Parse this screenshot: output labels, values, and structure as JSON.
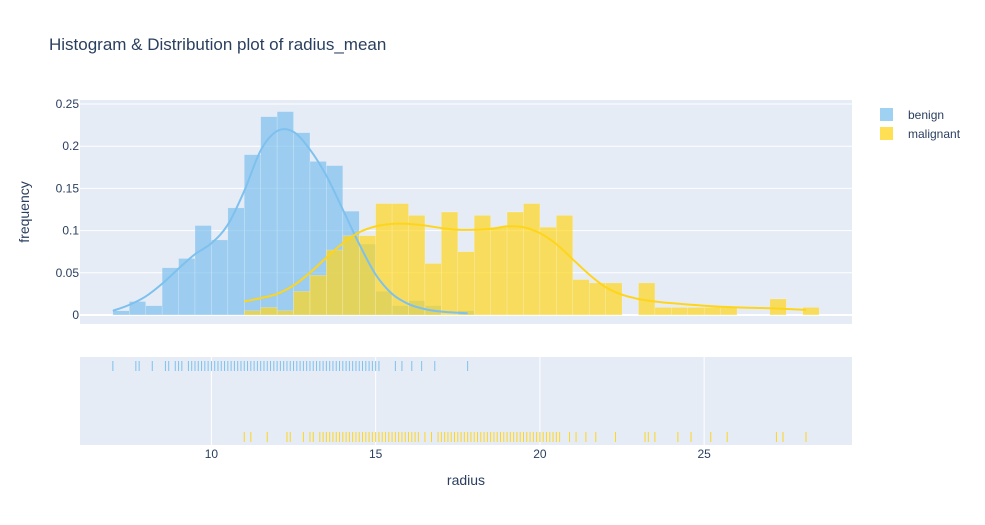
{
  "chart_data": {
    "type": "histogram",
    "title": "Histogram & Distribution plot of radius_mean",
    "xlabel": "radius",
    "ylabel": "frequency",
    "xlim": [
      6,
      29.5
    ],
    "ylim": [
      0,
      0.25
    ],
    "x_ticks": [
      10,
      15,
      20,
      25
    ],
    "y_ticks": [
      0,
      0.05,
      0.1,
      0.15,
      0.2,
      0.25
    ],
    "y_tick_labels": [
      "0",
      "0.05",
      "0.1",
      "0.15",
      "0.2",
      "0.25"
    ],
    "legend_position": "top-right",
    "bin_width": 0.5,
    "series": [
      {
        "name": "benign",
        "color": "#7ec1ee",
        "bins": [
          {
            "x": 7.0,
            "y": 0.005
          },
          {
            "x": 7.5,
            "y": 0.016
          },
          {
            "x": 8.0,
            "y": 0.011
          },
          {
            "x": 8.5,
            "y": 0.056
          },
          {
            "x": 9.0,
            "y": 0.067
          },
          {
            "x": 9.5,
            "y": 0.106
          },
          {
            "x": 10.0,
            "y": 0.089
          },
          {
            "x": 10.5,
            "y": 0.127
          },
          {
            "x": 11.0,
            "y": 0.19
          },
          {
            "x": 11.5,
            "y": 0.235
          },
          {
            "x": 12.0,
            "y": 0.241
          },
          {
            "x": 12.5,
            "y": 0.216
          },
          {
            "x": 13.0,
            "y": 0.182
          },
          {
            "x": 13.5,
            "y": 0.177
          },
          {
            "x": 14.0,
            "y": 0.123
          },
          {
            "x": 14.5,
            "y": 0.084
          },
          {
            "x": 15.0,
            "y": 0.028
          },
          {
            "x": 15.5,
            "y": 0.011
          },
          {
            "x": 16.0,
            "y": 0.017
          },
          {
            "x": 16.5,
            "y": 0.011
          },
          {
            "x": 17.5,
            "y": 0.005
          }
        ],
        "kde": [
          {
            "x": 7.0,
            "y": 0.005
          },
          {
            "x": 7.5,
            "y": 0.012
          },
          {
            "x": 8.0,
            "y": 0.022
          },
          {
            "x": 8.5,
            "y": 0.037
          },
          {
            "x": 9.0,
            "y": 0.055
          },
          {
            "x": 9.5,
            "y": 0.072
          },
          {
            "x": 10.0,
            "y": 0.085
          },
          {
            "x": 10.5,
            "y": 0.107
          },
          {
            "x": 11.0,
            "y": 0.147
          },
          {
            "x": 11.5,
            "y": 0.195
          },
          {
            "x": 12.0,
            "y": 0.218
          },
          {
            "x": 12.5,
            "y": 0.217
          },
          {
            "x": 13.0,
            "y": 0.196
          },
          {
            "x": 13.5,
            "y": 0.165
          },
          {
            "x": 14.0,
            "y": 0.125
          },
          {
            "x": 14.5,
            "y": 0.084
          },
          {
            "x": 15.0,
            "y": 0.048
          },
          {
            "x": 15.5,
            "y": 0.025
          },
          {
            "x": 16.0,
            "y": 0.013
          },
          {
            "x": 16.5,
            "y": 0.007
          },
          {
            "x": 17.0,
            "y": 0.004
          },
          {
            "x": 17.8,
            "y": 0.002
          }
        ],
        "rug": [
          7.0,
          7.7,
          7.8,
          8.2,
          8.6,
          8.7,
          8.9,
          9.0,
          9.1,
          9.3,
          9.4,
          9.5,
          9.6,
          9.7,
          9.8,
          9.9,
          10.0,
          10.1,
          10.2,
          10.3,
          10.4,
          10.5,
          10.6,
          10.7,
          10.8,
          10.9,
          11.0,
          11.1,
          11.2,
          11.3,
          11.4,
          11.5,
          11.6,
          11.7,
          11.8,
          11.9,
          12.0,
          12.1,
          12.2,
          12.3,
          12.4,
          12.5,
          12.6,
          12.7,
          12.8,
          12.9,
          13.0,
          13.1,
          13.2,
          13.3,
          13.4,
          13.5,
          13.6,
          13.7,
          13.8,
          13.9,
          14.0,
          14.1,
          14.2,
          14.3,
          14.4,
          14.5,
          14.6,
          14.7,
          14.8,
          14.9,
          15.0,
          15.1,
          15.6,
          15.8,
          16.1,
          16.4,
          16.8,
          17.8
        ]
      },
      {
        "name": "malignant",
        "color": "#ffd51c",
        "bins": [
          {
            "x": 11.0,
            "y": 0.005
          },
          {
            "x": 11.5,
            "y": 0.009
          },
          {
            "x": 12.0,
            "y": 0.005
          },
          {
            "x": 12.5,
            "y": 0.028
          },
          {
            "x": 13.0,
            "y": 0.047
          },
          {
            "x": 13.5,
            "y": 0.077
          },
          {
            "x": 14.0,
            "y": 0.094
          },
          {
            "x": 14.5,
            "y": 0.094
          },
          {
            "x": 15.0,
            "y": 0.132
          },
          {
            "x": 15.5,
            "y": 0.132
          },
          {
            "x": 16.0,
            "y": 0.118
          },
          {
            "x": 16.5,
            "y": 0.061
          },
          {
            "x": 17.0,
            "y": 0.122
          },
          {
            "x": 17.5,
            "y": 0.075
          },
          {
            "x": 18.0,
            "y": 0.118
          },
          {
            "x": 18.5,
            "y": 0.104
          },
          {
            "x": 19.0,
            "y": 0.122
          },
          {
            "x": 19.5,
            "y": 0.132
          },
          {
            "x": 20.0,
            "y": 0.104
          },
          {
            "x": 20.5,
            "y": 0.118
          },
          {
            "x": 21.0,
            "y": 0.042
          },
          {
            "x": 21.5,
            "y": 0.038
          },
          {
            "x": 22.0,
            "y": 0.038
          },
          {
            "x": 23.0,
            "y": 0.038
          },
          {
            "x": 23.5,
            "y": 0.009
          },
          {
            "x": 24.0,
            "y": 0.009
          },
          {
            "x": 24.5,
            "y": 0.009
          },
          {
            "x": 25.0,
            "y": 0.009
          },
          {
            "x": 25.5,
            "y": 0.009
          },
          {
            "x": 27.0,
            "y": 0.019
          },
          {
            "x": 28.0,
            "y": 0.009
          }
        ],
        "kde": [
          {
            "x": 11.0,
            "y": 0.016
          },
          {
            "x": 11.5,
            "y": 0.02
          },
          {
            "x": 12.0,
            "y": 0.025
          },
          {
            "x": 12.5,
            "y": 0.035
          },
          {
            "x": 13.0,
            "y": 0.05
          },
          {
            "x": 13.5,
            "y": 0.068
          },
          {
            "x": 14.0,
            "y": 0.085
          },
          {
            "x": 14.5,
            "y": 0.098
          },
          {
            "x": 15.0,
            "y": 0.105
          },
          {
            "x": 15.5,
            "y": 0.108
          },
          {
            "x": 16.0,
            "y": 0.108
          },
          {
            "x": 16.5,
            "y": 0.106
          },
          {
            "x": 17.0,
            "y": 0.103
          },
          {
            "x": 17.5,
            "y": 0.101
          },
          {
            "x": 18.0,
            "y": 0.101
          },
          {
            "x": 18.5,
            "y": 0.102
          },
          {
            "x": 19.0,
            "y": 0.105
          },
          {
            "x": 19.5,
            "y": 0.104
          },
          {
            "x": 20.0,
            "y": 0.097
          },
          {
            "x": 20.5,
            "y": 0.084
          },
          {
            "x": 21.0,
            "y": 0.066
          },
          {
            "x": 21.5,
            "y": 0.048
          },
          {
            "x": 22.0,
            "y": 0.033
          },
          {
            "x": 22.5,
            "y": 0.024
          },
          {
            "x": 23.0,
            "y": 0.019
          },
          {
            "x": 23.5,
            "y": 0.016
          },
          {
            "x": 24.0,
            "y": 0.014
          },
          {
            "x": 25.0,
            "y": 0.011
          },
          {
            "x": 26.0,
            "y": 0.009
          },
          {
            "x": 27.0,
            "y": 0.008
          },
          {
            "x": 28.1,
            "y": 0.006
          }
        ],
        "rug": [
          11.0,
          11.2,
          11.7,
          12.3,
          12.4,
          12.8,
          13.0,
          13.1,
          13.3,
          13.4,
          13.5,
          13.6,
          13.7,
          13.8,
          13.9,
          14.0,
          14.1,
          14.2,
          14.3,
          14.4,
          14.5,
          14.6,
          14.7,
          14.8,
          14.9,
          15.0,
          15.1,
          15.2,
          15.3,
          15.4,
          15.5,
          15.6,
          15.7,
          15.8,
          15.9,
          16.0,
          16.1,
          16.2,
          16.3,
          16.5,
          16.7,
          16.9,
          17.0,
          17.1,
          17.2,
          17.3,
          17.4,
          17.5,
          17.6,
          17.7,
          17.8,
          17.9,
          18.0,
          18.1,
          18.2,
          18.3,
          18.4,
          18.5,
          18.6,
          18.7,
          18.8,
          18.9,
          19.0,
          19.1,
          19.2,
          19.3,
          19.4,
          19.5,
          19.6,
          19.7,
          19.8,
          19.9,
          20.0,
          20.1,
          20.2,
          20.3,
          20.4,
          20.5,
          20.6,
          20.9,
          21.1,
          21.4,
          21.7,
          22.3,
          23.2,
          23.3,
          23.5,
          24.2,
          24.6,
          25.2,
          25.7,
          27.2,
          27.4,
          28.1
        ]
      }
    ]
  }
}
